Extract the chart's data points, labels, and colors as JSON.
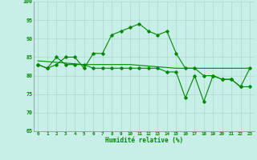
{
  "title": "",
  "xlabel": "Humidité relative (%)",
  "ylabel": "",
  "bg_color": "#c8eee8",
  "grid_color": "#aad8cc",
  "line_color": "#008800",
  "xlim": [
    -0.5,
    23.5
  ],
  "ylim": [
    65,
    100
  ],
  "yticks": [
    65,
    70,
    75,
    80,
    85,
    90,
    95,
    100
  ],
  "xticks": [
    0,
    1,
    2,
    3,
    4,
    5,
    6,
    7,
    8,
    9,
    10,
    11,
    12,
    13,
    14,
    15,
    16,
    17,
    18,
    19,
    20,
    21,
    22,
    23
  ],
  "series1": [
    83,
    82,
    83,
    85,
    85,
    82,
    86,
    86,
    91,
    92,
    93,
    94,
    92,
    91,
    92,
    86,
    82,
    82,
    80,
    80,
    79,
    79,
    77,
    77
  ],
  "series2_x": [
    0,
    5,
    10,
    15,
    20,
    23
  ],
  "series2_y": [
    84,
    83,
    83,
    82,
    82,
    82
  ],
  "series3": [
    83,
    82,
    85,
    83,
    83,
    83,
    82,
    82,
    82,
    82,
    82,
    82,
    82,
    82,
    81,
    81,
    74,
    80,
    73,
    80,
    79,
    79,
    77,
    82
  ]
}
